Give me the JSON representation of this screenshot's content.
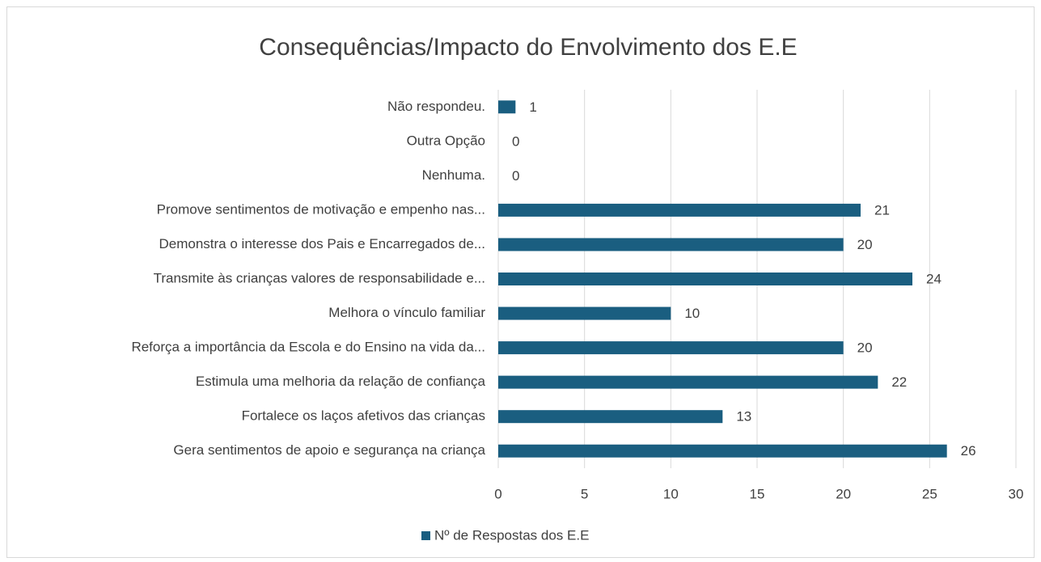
{
  "chart_data": {
    "type": "bar",
    "orientation": "horizontal",
    "title": "Consequências/Impacto do Envolvimento dos E.E",
    "categories": [
      "Não respondeu.",
      "Outra Opção",
      "Nenhuma.",
      "Promove sentimentos de motivação e empenho nas...",
      "Demonstra o interesse dos Pais e Encarregados de...",
      "Transmite às crianças valores de responsabilidade e...",
      "Melhora o vínculo familiar",
      "Reforça a importância da Escola e do Ensino na vida da...",
      "Estimula uma melhoria da relação de confiança",
      "Fortalece os laços afetivos das crianças",
      "Gera sentimentos de apoio e segurança na criança"
    ],
    "series": [
      {
        "name": "Nº de Respostas dos E.E",
        "color": "#1a5e80",
        "values": [
          1,
          0,
          0,
          21,
          20,
          24,
          10,
          20,
          22,
          13,
          26
        ]
      }
    ],
    "xlim": [
      0,
      30
    ],
    "xticks": [
      0,
      5,
      10,
      15,
      20,
      25,
      30
    ],
    "grid": true,
    "legend": "bottom"
  }
}
